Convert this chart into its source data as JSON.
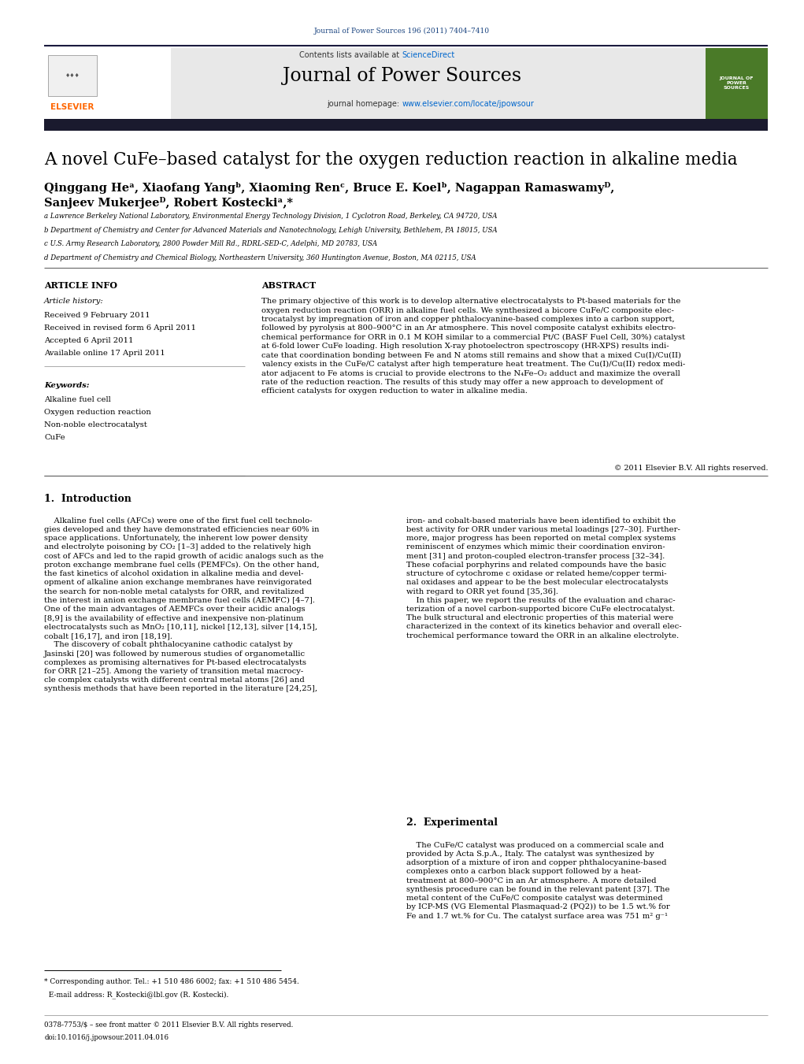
{
  "page_width": 10.21,
  "page_height": 13.51,
  "background_color": "#ffffff",
  "journal_ref": "Journal of Power Sources 196 (2011) 7404–7410",
  "journal_ref_color": "#1a4480",
  "header_bg": "#e8e8e8",
  "contents_text": "Contents lists available at ",
  "sciencedirect_text": "ScienceDirect",
  "sciencedirect_color": "#0066cc",
  "journal_name": "Journal of Power Sources",
  "journal_homepage": "journal homepage: ",
  "journal_url": "www.elsevier.com/locate/jpowsour",
  "journal_url_color": "#0066cc",
  "dark_bar_color": "#1a1a2e",
  "elsevier_color": "#ff6600",
  "article_title": "A novel CuFe–based catalyst for the oxygen reduction reaction in alkaline media",
  "affil_a": "a Lawrence Berkeley National Laboratory, Environmental Energy Technology Division, 1 Cyclotron Road, Berkeley, CA 94720, USA",
  "affil_b": "b Department of Chemistry and Center for Advanced Materials and Nanotechnology, Lehigh University, Bethlehem, PA 18015, USA",
  "affil_c": "c U.S. Army Research Laboratory, 2800 Powder Mill Rd., RDRL-SED-C, Adelphi, MD 20783, USA",
  "affil_d": "d Department of Chemistry and Chemical Biology, Northeastern University, 360 Huntington Avenue, Boston, MA 02115, USA",
  "article_info_title": "ARTICLE INFO",
  "abstract_title": "ABSTRACT",
  "article_history_label": "Article history:",
  "received": "Received 9 February 2011",
  "received_revised": "Received in revised form 6 April 2011",
  "accepted": "Accepted 6 April 2011",
  "available": "Available online 17 April 2011",
  "keywords_label": "Keywords:",
  "keywords": [
    "Alkaline fuel cell",
    "Oxygen reduction reaction",
    "Non-noble electrocatalyst",
    "CuFe"
  ],
  "abstract_text": "The primary objective of this work is to develop alternative electrocatalysts to Pt-based materials for the oxygen reduction reaction (ORR) in alkaline fuel cells. We synthesized a bicore CuFe/C composite electrocatalyst by impregnation of iron and copper phthalocyanine-based complexes into a carbon support, followed by pyrolysis at 800–900°C in an Ar atmosphere. This novel composite catalyst exhibits electrochemical performance for ORR in 0.1 M KOH similar to a commercial Pt/C (BASF Fuel Cell, 30%) catalyst at 6-fold lower CuFe loading. High resolution X-ray photoelectron spectroscopy (HR-XPS) results indicate that coordination bonding between Fe and N atoms still remains and show that a mixed Cu(I)/Cu(II) valency exists in the CuFe/C catalyst after high temperature heat treatment. The Cu(I)/Cu(II) redox mediator adjacent to Fe atoms is crucial to provide electrons to the N₄Fe–O₂ adduct and maximize the overall rate of the reduction reaction. The results of this study may offer a new approach to development of efficient catalysts for oxygen reduction to water in alkaline media.",
  "copyright": "© 2011 Elsevier B.V. All rights reserved.",
  "section1_title": "1.  Introduction",
  "section2_title": "2.  Experimental",
  "footnote1": "* Corresponding author. Tel.: +1 510 486 6002; fax: +1 510 486 5454.",
  "footnote2": "  E-mail address: R_Kostecki@lbl.gov (R. Kostecki).",
  "footer1": "0378-7753/$ – see front matter © 2011 Elsevier B.V. All rights reserved.",
  "footer2": "doi:10.1016/j.jpowsour.2011.04.016"
}
